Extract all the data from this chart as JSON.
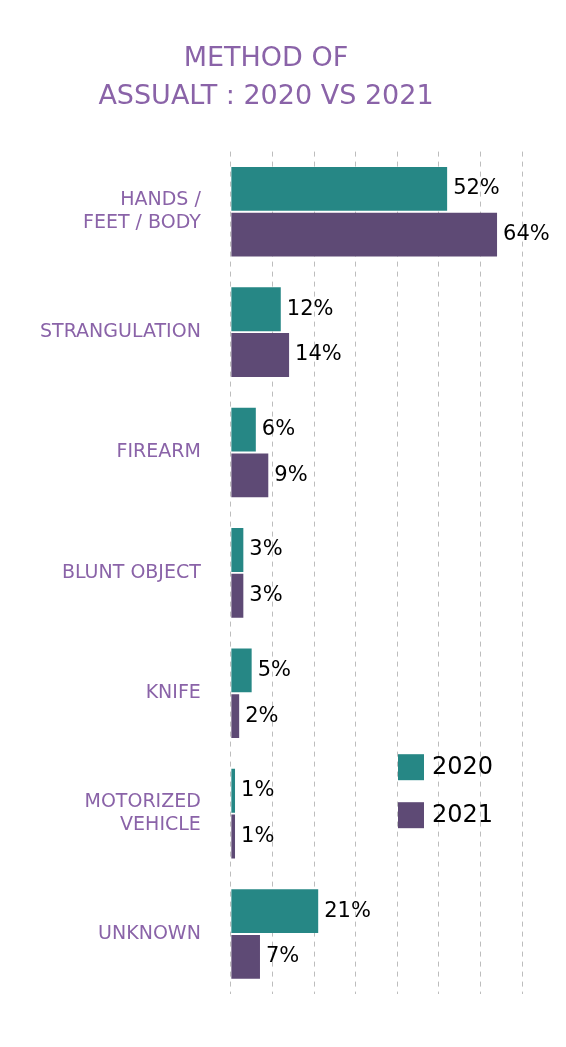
{
  "chart_data": {
    "type": "bar",
    "orientation": "horizontal",
    "title": "METHOD OF\nASSUALT : 2020 VS 2021",
    "categories": [
      "HANDS /\nFEET / BODY",
      "STRANGULATION",
      "FIREARM",
      "BLUNT OBJECT",
      "KNIFE",
      "MOTORIZED\nVEHICLE",
      "UNKNOWN"
    ],
    "series": [
      {
        "name": "2020",
        "color": "#268785",
        "values": [
          52,
          12,
          6,
          3,
          5,
          1,
          21
        ],
        "value_labels": [
          "52%",
          "12%",
          "6%",
          "3%",
          "5%",
          "1%",
          "21%"
        ]
      },
      {
        "name": "2021",
        "color": "#5e4a75",
        "values": [
          64,
          14,
          9,
          3,
          2,
          1,
          7
        ],
        "value_labels": [
          "64%",
          "14%",
          "9%",
          "3%",
          "2%",
          "1%",
          "7%"
        ]
      }
    ],
    "xlim": [
      0,
      70
    ],
    "xticks": [
      {
        "value": 0,
        "label": null
      },
      {
        "value": 10,
        "label": null
      },
      {
        "value": 20,
        "label": null
      },
      {
        "value": 30,
        "label": null
      },
      {
        "value": 40,
        "label": null
      },
      {
        "value": 50,
        "label": null
      },
      {
        "value": 60,
        "label": null
      },
      {
        "value": 70,
        "label": null
      }
    ],
    "grid": "x",
    "legend": "bottom right",
    "tick_labels": "y",
    "relative": false
  }
}
